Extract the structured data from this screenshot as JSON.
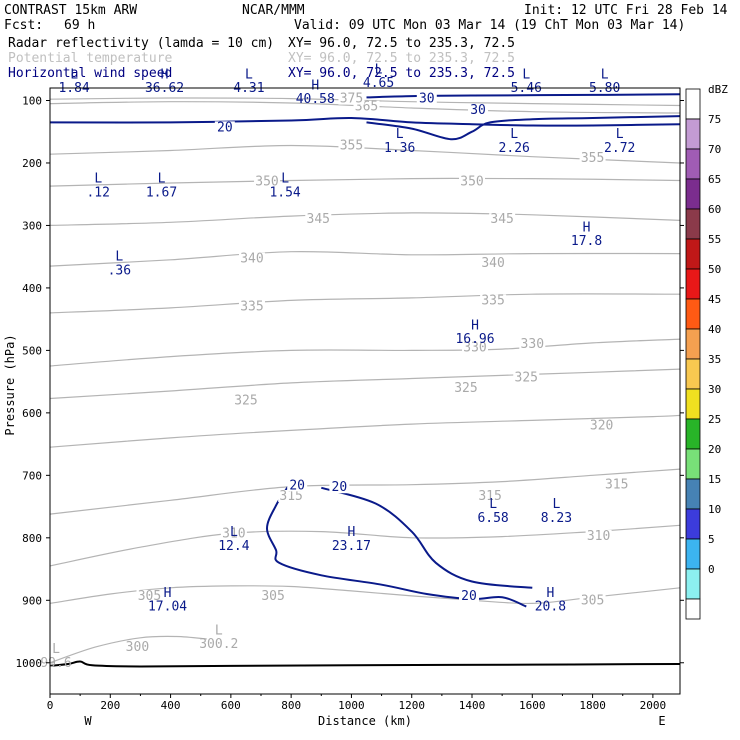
{
  "header": {
    "model": "CONTRAST 15km ARW",
    "org": "NCAR/MMM",
    "init": "Init: 12 UTC Fri 28 Feb 14",
    "fcst_label": "Fcst:",
    "fcst_value": "69 h",
    "valid": "Valid: 09 UTC Mon 03 Mar 14 (19 ChT Mon 03 Mar 14)",
    "fields": [
      {
        "name": "Radar reflectivity (lamda = 10 cm)",
        "xy": "XY=  96.0, 72.5 to 235.3, 72.5",
        "color": "#000000"
      },
      {
        "name": "Potential temperature",
        "xy": "XY=  96.0, 72.5 to 235.3, 72.5",
        "color": "#c0c0c0"
      },
      {
        "name": "Horizontal wind speed",
        "xy": "XY=  96.0, 72.5 to 235.3, 72.5",
        "color": "#000080"
      }
    ]
  },
  "chart_data": {
    "type": "contour",
    "xlabel": "Distance (km)",
    "ylabel": "Pressure (hPa)",
    "xlim": [
      0,
      2090
    ],
    "ylim": [
      1050,
      80
    ],
    "x_ticks": [
      0,
      200,
      400,
      600,
      800,
      1000,
      1200,
      1400,
      1600,
      1800,
      2000
    ],
    "y_ticks": [
      100,
      200,
      300,
      400,
      500,
      600,
      700,
      800,
      900,
      1000
    ],
    "x_end_labels": {
      "west": "W",
      "east": "E"
    },
    "colorbar": {
      "unit": "dBZ",
      "levels": [
        {
          "label": "75",
          "color": "#c39bd3"
        },
        {
          "label": "70",
          "color": "#a05cb4"
        },
        {
          "label": "65",
          "color": "#7b2d8e"
        },
        {
          "label": "60",
          "color": "#8b3a4a"
        },
        {
          "label": "55",
          "color": "#c01818"
        },
        {
          "label": "50",
          "color": "#e81818"
        },
        {
          "label": "45",
          "color": "#ff5a14"
        },
        {
          "label": "40",
          "color": "#f5a050"
        },
        {
          "label": "35",
          "color": "#f8c850"
        },
        {
          "label": "30",
          "color": "#f0e020"
        },
        {
          "label": "25",
          "color": "#28b428"
        },
        {
          "label": "20",
          "color": "#78e078"
        },
        {
          "label": "15",
          "color": "#4682b4"
        },
        {
          "label": "10",
          "color": "#3c3cdc"
        },
        {
          "label": "5",
          "color": "#3cb4f0"
        },
        {
          "label": "0",
          "color": "#8cf0f0"
        }
      ],
      "top_color": "#ffffff",
      "bottom_color": "#ffffff"
    },
    "theta_contours": [
      {
        "label": "300",
        "points": [
          [
            0,
            1000
          ],
          [
            150,
            975
          ],
          [
            300,
            960
          ],
          [
            420,
            958
          ],
          [
            520,
            962
          ]
        ]
      },
      {
        "label": "305",
        "points": [
          [
            0,
            905
          ],
          [
            200,
            890
          ],
          [
            400,
            880
          ],
          [
            600,
            877
          ],
          [
            800,
            878
          ],
          [
            1000,
            885
          ],
          [
            1200,
            893
          ],
          [
            1400,
            900
          ],
          [
            1600,
            905
          ],
          [
            1800,
            895
          ],
          [
            2090,
            880
          ]
        ]
      },
      {
        "label": "310",
        "points": [
          [
            0,
            845
          ],
          [
            300,
            815
          ],
          [
            600,
            793
          ],
          [
            900,
            790
          ],
          [
            1200,
            800
          ],
          [
            1500,
            798
          ],
          [
            1800,
            790
          ],
          [
            2090,
            780
          ]
        ]
      },
      {
        "label": "315",
        "points": [
          [
            0,
            762
          ],
          [
            400,
            740
          ],
          [
            800,
            718
          ],
          [
            1200,
            715
          ],
          [
            1500,
            710
          ],
          [
            1800,
            700
          ],
          [
            2090,
            690
          ]
        ]
      },
      {
        "label": "320",
        "points": [
          [
            0,
            655
          ],
          [
            400,
            640
          ],
          [
            800,
            628
          ],
          [
            1200,
            618
          ],
          [
            1600,
            612
          ],
          [
            2000,
            606
          ],
          [
            2090,
            604
          ]
        ]
      },
      {
        "label": "325",
        "points": [
          [
            0,
            577
          ],
          [
            400,
            565
          ],
          [
            800,
            552
          ],
          [
            1200,
            545
          ],
          [
            1500,
            540
          ],
          [
            1800,
            535
          ],
          [
            2090,
            530
          ]
        ]
      },
      {
        "label": "330",
        "points": [
          [
            0,
            525
          ],
          [
            400,
            510
          ],
          [
            800,
            500
          ],
          [
            1200,
            500
          ],
          [
            1500,
            498
          ],
          [
            1800,
            488
          ],
          [
            2090,
            482
          ]
        ]
      },
      {
        "label": "335",
        "points": [
          [
            0,
            440
          ],
          [
            400,
            432
          ],
          [
            800,
            420
          ],
          [
            1200,
            416
          ],
          [
            1600,
            410
          ],
          [
            2090,
            410
          ]
        ]
      },
      {
        "label": "340",
        "points": [
          [
            0,
            365
          ],
          [
            400,
            355
          ],
          [
            800,
            342
          ],
          [
            1200,
            347
          ],
          [
            1600,
            345
          ],
          [
            2090,
            345
          ]
        ]
      },
      {
        "label": "345",
        "points": [
          [
            0,
            300
          ],
          [
            400,
            295
          ],
          [
            800,
            285
          ],
          [
            1200,
            280
          ],
          [
            1600,
            283
          ],
          [
            2090,
            292
          ]
        ]
      },
      {
        "label": "350",
        "points": [
          [
            0,
            237
          ],
          [
            400,
            232
          ],
          [
            800,
            228
          ],
          [
            1200,
            225
          ],
          [
            1600,
            225
          ],
          [
            2090,
            228
          ]
        ]
      },
      {
        "label": "355",
        "points": [
          [
            0,
            186
          ],
          [
            400,
            180
          ],
          [
            800,
            172
          ],
          [
            1200,
            180
          ],
          [
            1600,
            190
          ],
          [
            2090,
            200
          ]
        ]
      },
      {
        "label": "365",
        "points": [
          [
            0,
            105
          ],
          [
            400,
            102
          ],
          [
            800,
            104
          ],
          [
            1200,
            112
          ],
          [
            1600,
            118
          ],
          [
            2090,
            120
          ]
        ]
      },
      {
        "label": "375",
        "points": [
          [
            0,
            98
          ],
          [
            400,
            96
          ],
          [
            800,
            97
          ],
          [
            1200,
            102
          ],
          [
            1600,
            105
          ],
          [
            2090,
            108
          ]
        ]
      }
    ],
    "theta_labels": [
      {
        "text": "300",
        "x": 290,
        "p": 975
      },
      {
        "text": "305",
        "x": 330,
        "p": 893
      },
      {
        "text": "305",
        "x": 740,
        "p": 893
      },
      {
        "text": "305",
        "x": 1800,
        "p": 900
      },
      {
        "text": "310",
        "x": 610,
        "p": 793
      },
      {
        "text": "310",
        "x": 1820,
        "p": 797
      },
      {
        "text": "315",
        "x": 800,
        "p": 733
      },
      {
        "text": "315",
        "x": 1460,
        "p": 733
      },
      {
        "text": "315",
        "x": 1880,
        "p": 715
      },
      {
        "text": "320",
        "x": 1830,
        "p": 620
      },
      {
        "text": "325",
        "x": 650,
        "p": 580
      },
      {
        "text": "325",
        "x": 1380,
        "p": 560
      },
      {
        "text": "325",
        "x": 1580,
        "p": 543
      },
      {
        "text": "330",
        "x": 1410,
        "p": 495
      },
      {
        "text": "330",
        "x": 1600,
        "p": 490
      },
      {
        "text": "335",
        "x": 670,
        "p": 430
      },
      {
        "text": "335",
        "x": 1470,
        "p": 420
      },
      {
        "text": "340",
        "x": 670,
        "p": 353
      },
      {
        "text": "340",
        "x": 1470,
        "p": 360
      },
      {
        "text": "345",
        "x": 890,
        "p": 290
      },
      {
        "text": "345",
        "x": 1500,
        "p": 290
      },
      {
        "text": "350",
        "x": 720,
        "p": 230
      },
      {
        "text": "350",
        "x": 1400,
        "p": 230
      },
      {
        "text": "355",
        "x": 1000,
        "p": 172
      },
      {
        "text": "355",
        "x": 1800,
        "p": 192
      },
      {
        "text": "365",
        "x": 1050,
        "p": 110
      },
      {
        "text": "375",
        "x": 1000,
        "p": 97
      }
    ],
    "theta_extrema": [
      {
        "type": "L",
        "value": "300.2",
        "x": 560,
        "p": 970
      },
      {
        "type": "L",
        "value": "99.6",
        "x": 20,
        "p": 1000
      }
    ],
    "wind_contours": [
      {
        "label": "20",
        "points": [
          [
            0,
            135
          ],
          [
            400,
            135
          ],
          [
            800,
            132
          ],
          [
            1000,
            128
          ],
          [
            1200,
            135
          ],
          [
            1400,
            138
          ],
          [
            1600,
            140
          ],
          [
            1800,
            140
          ],
          [
            2090,
            138
          ]
        ]
      },
      {
        "label": "30",
        "points": [
          [
            1050,
            135
          ],
          [
            1200,
            145
          ],
          [
            1330,
            162
          ],
          [
            1400,
            150
          ],
          [
            1460,
            135
          ],
          [
            1600,
            130
          ],
          [
            1800,
            128
          ],
          [
            2090,
            125
          ]
        ]
      },
      {
        "label": "20",
        "points": [
          [
            790,
            718
          ],
          [
            750,
            748
          ],
          [
            720,
            785
          ],
          [
            750,
            820
          ],
          [
            760,
            840
          ],
          [
            900,
            860
          ],
          [
            1100,
            875
          ],
          [
            1250,
            890
          ],
          [
            1400,
            898
          ],
          [
            1500,
            895
          ],
          [
            1580,
            910
          ]
        ]
      },
      {
        "label": "20",
        "points": [
          [
            900,
            720
          ],
          [
            1080,
            745
          ],
          [
            1200,
            790
          ],
          [
            1280,
            840
          ],
          [
            1400,
            870
          ],
          [
            1600,
            880
          ]
        ]
      },
      {
        "label": "30",
        "points": [
          [
            1050,
            95
          ],
          [
            1200,
            93
          ],
          [
            1400,
            92
          ],
          [
            1800,
            91
          ],
          [
            2090,
            90
          ]
        ]
      }
    ],
    "wind_labels": [
      {
        "text": "20",
        "x": 580,
        "p": 143
      },
      {
        "text": "30",
        "x": 1420,
        "p": 115
      },
      {
        "text": "30",
        "x": 1250,
        "p": 97
      },
      {
        "text": "20",
        "x": 820,
        "p": 716
      },
      {
        "text": "20",
        "x": 960,
        "p": 719
      },
      {
        "text": "20",
        "x": 1390,
        "p": 893
      }
    ],
    "wind_extrema": [
      {
        "type": "L",
        "value": "1.84",
        "x": 80,
        "p": 80
      },
      {
        "type": "H",
        "value": "36.62",
        "x": 380,
        "p": 80
      },
      {
        "type": "L",
        "value": "4.31",
        "x": 660,
        "p": 80
      },
      {
        "type": "H",
        "value": "40.58",
        "x": 880,
        "p": 98
      },
      {
        "type": "L",
        "value": "4.65",
        "x": 1090,
        "p": 72
      },
      {
        "type": "L",
        "value": "5.46",
        "x": 1580,
        "p": 80
      },
      {
        "type": "L",
        "value": "5.80",
        "x": 1840,
        "p": 80
      },
      {
        "type": "L",
        "value": "1.36",
        "x": 1160,
        "p": 176
      },
      {
        "type": "L",
        "value": "2.26",
        "x": 1540,
        "p": 176
      },
      {
        "type": "L",
        "value": "2.72",
        "x": 1890,
        "p": 176
      },
      {
        "type": "L",
        "value": ".12",
        "x": 160,
        "p": 247
      },
      {
        "type": "L",
        "value": "1.67",
        "x": 370,
        "p": 247
      },
      {
        "type": "L",
        "value": "1.54",
        "x": 780,
        "p": 247
      },
      {
        "type": "H",
        "value": "17.8",
        "x": 1780,
        "p": 325
      },
      {
        "type": "L",
        "value": ".36",
        "x": 230,
        "p": 372
      },
      {
        "type": "H",
        "value": "16.96",
        "x": 1410,
        "p": 482
      },
      {
        "type": "L",
        "value": "6.58",
        "x": 1470,
        "p": 768
      },
      {
        "type": "L",
        "value": "8.23",
        "x": 1680,
        "p": 768
      },
      {
        "type": "L",
        "value": "12.4",
        "x": 610,
        "p": 813
      },
      {
        "type": "H",
        "value": "23.17",
        "x": 1000,
        "p": 813
      },
      {
        "type": "H",
        "value": "17.04",
        "x": 390,
        "p": 910
      },
      {
        "type": "H",
        "value": "20.8",
        "x": 1660,
        "p": 910
      }
    ],
    "terrain": [
      [
        0,
        1005
      ],
      [
        60,
        1002
      ],
      [
        100,
        998
      ],
      [
        140,
        1004
      ],
      [
        300,
        1006
      ],
      [
        600,
        1005
      ],
      [
        1000,
        1004
      ],
      [
        1600,
        1003
      ],
      [
        2090,
        1002
      ]
    ]
  }
}
